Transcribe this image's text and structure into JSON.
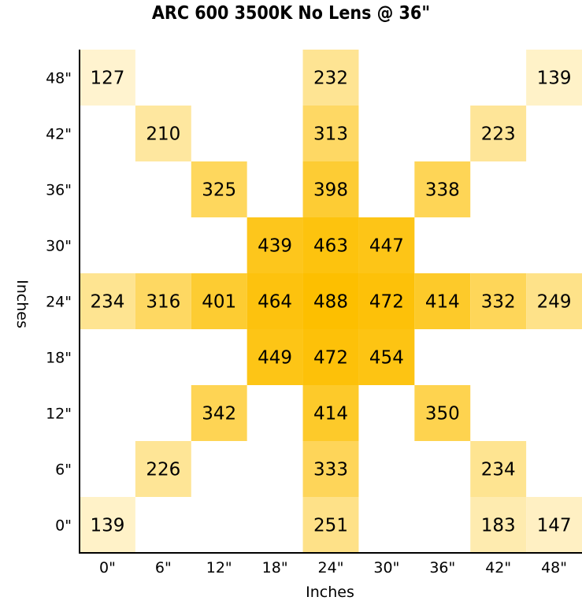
{
  "chart_data": {
    "type": "heatmap",
    "title": "ARC 600 3500K No Lens @ 36\"",
    "xlabel": "Inches",
    "ylabel": "Inches",
    "x_categories": [
      "0\"",
      "6\"",
      "12\"",
      "18\"",
      "24\"",
      "30\"",
      "36\"",
      "42\"",
      "48\""
    ],
    "y_categories": [
      "0\"",
      "6\"",
      "12\"",
      "18\"",
      "24\"",
      "30\"",
      "36\"",
      "42\"",
      "48\""
    ],
    "color_low": "#fffdf5",
    "color_high": "#fdbf00",
    "cells": [
      {
        "x": "0\"",
        "y": "48\"",
        "value": 127
      },
      {
        "x": "24\"",
        "y": "48\"",
        "value": 232
      },
      {
        "x": "48\"",
        "y": "48\"",
        "value": 139
      },
      {
        "x": "6\"",
        "y": "42\"",
        "value": 210
      },
      {
        "x": "24\"",
        "y": "42\"",
        "value": 313
      },
      {
        "x": "42\"",
        "y": "42\"",
        "value": 223
      },
      {
        "x": "12\"",
        "y": "36\"",
        "value": 325
      },
      {
        "x": "24\"",
        "y": "36\"",
        "value": 398
      },
      {
        "x": "36\"",
        "y": "36\"",
        "value": 338
      },
      {
        "x": "18\"",
        "y": "30\"",
        "value": 439
      },
      {
        "x": "24\"",
        "y": "30\"",
        "value": 463
      },
      {
        "x": "30\"",
        "y": "30\"",
        "value": 447
      },
      {
        "x": "0\"",
        "y": "24\"",
        "value": 234
      },
      {
        "x": "6\"",
        "y": "24\"",
        "value": 316
      },
      {
        "x": "12\"",
        "y": "24\"",
        "value": 401
      },
      {
        "x": "18\"",
        "y": "24\"",
        "value": 464
      },
      {
        "x": "24\"",
        "y": "24\"",
        "value": 488
      },
      {
        "x": "30\"",
        "y": "24\"",
        "value": 472
      },
      {
        "x": "36\"",
        "y": "24\"",
        "value": 414
      },
      {
        "x": "42\"",
        "y": "24\"",
        "value": 332
      },
      {
        "x": "48\"",
        "y": "24\"",
        "value": 249
      },
      {
        "x": "18\"",
        "y": "18\"",
        "value": 449
      },
      {
        "x": "24\"",
        "y": "18\"",
        "value": 472
      },
      {
        "x": "30\"",
        "y": "18\"",
        "value": 454
      },
      {
        "x": "12\"",
        "y": "12\"",
        "value": 342
      },
      {
        "x": "24\"",
        "y": "12\"",
        "value": 414
      },
      {
        "x": "36\"",
        "y": "12\"",
        "value": 350
      },
      {
        "x": "6\"",
        "y": "6\"",
        "value": 226
      },
      {
        "x": "24\"",
        "y": "6\"",
        "value": 333
      },
      {
        "x": "42\"",
        "y": "6\"",
        "value": 234
      },
      {
        "x": "0\"",
        "y": "0\"",
        "value": 139
      },
      {
        "x": "24\"",
        "y": "0\"",
        "value": 251
      },
      {
        "x": "42\"",
        "y": "0\"",
        "value": 183
      },
      {
        "x": "48\"",
        "y": "0\"",
        "value": 147
      }
    ],
    "grid": false,
    "legend": "none"
  }
}
